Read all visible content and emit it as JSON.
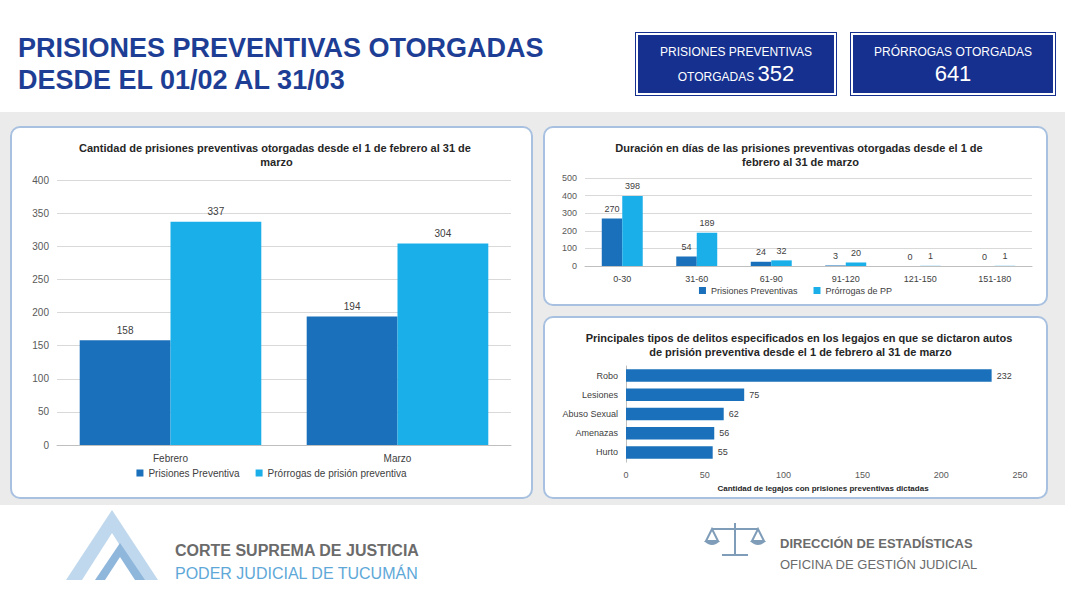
{
  "header": {
    "title_lines": [
      "PRISIONES PREVENTIVAS OTORGADAS",
      "DESDE EL 01/02 AL 31/03"
    ],
    "boxes": [
      {
        "label": "PRISIONES PREVENTIVAS OTORGADAS",
        "value": 352
      },
      {
        "label": "PRÓRROGAS OTORGADAS",
        "value": 641
      }
    ]
  },
  "chart_data": [
    {
      "type": "bar",
      "title": "Cantidad de prisiones preventivas otorgadas desde el 1 de febrero al 31 de marzo",
      "categories": [
        "Febrero",
        "Marzo"
      ],
      "series": [
        {
          "name": "Prisiones Preventiva",
          "color": "#1A70BA",
          "values": [
            158,
            194
          ]
        },
        {
          "name": "Prórrogas de prisión preventiva",
          "color": "#1BAFEA",
          "values": [
            337,
            304
          ]
        }
      ],
      "ylim": [
        0,
        400
      ],
      "yticks": [
        0,
        50,
        100,
        150,
        200,
        250,
        300,
        350,
        400
      ],
      "grid": true,
      "legend": "bottom",
      "data_labels": true
    },
    {
      "type": "bar",
      "title": "Duración en días de las prisiones preventivas otorgadas desde el 1 de febrero al 31 de marzo",
      "categories": [
        "0-30",
        "31-60",
        "61-90",
        "91-120",
        "121-150",
        "151-180"
      ],
      "series": [
        {
          "name": "Prisiones Preventivas",
          "color": "#1A70BA",
          "values": [
            270,
            54,
            24,
            3,
            0,
            0
          ]
        },
        {
          "name": "Prórrogas de PP",
          "color": "#1BAFEA",
          "values": [
            398,
            189,
            32,
            20,
            1,
            1
          ]
        }
      ],
      "ylim": [
        0,
        500
      ],
      "yticks": [
        0,
        100,
        200,
        300,
        400,
        500
      ],
      "grid": true,
      "legend": "bottom",
      "data_labels": true
    },
    {
      "type": "bar",
      "title": "Principales tipos de delitos especificados en los legajos en que se dictaron autos de prisión preventiva desde el 1 de febrero al 31 de marzo",
      "categories": [
        "Robo",
        "Lesiones",
        "Abuso Sexual",
        "Amenazas",
        "Hurto"
      ],
      "values": [
        232,
        75,
        62,
        56,
        55
      ],
      "color": "#1A70BA",
      "xlabel": "Cantidad de legajos con prisiones preventivas dictadas",
      "xlim": [
        0,
        250
      ],
      "xticks": [
        0,
        50,
        100,
        150,
        200,
        250
      ],
      "grid": false,
      "orientation": "horizontal",
      "data_labels": true
    }
  ],
  "footer": {
    "left": [
      "CORTE SUPREMA DE JUSTICIA",
      "PODER JUDICIAL DE TUCUMÁN"
    ],
    "right": [
      "DIRECCIÓN DE ESTADÍSTICAS",
      "OFICINA DE GESTIÓN JUDICIAL"
    ]
  }
}
